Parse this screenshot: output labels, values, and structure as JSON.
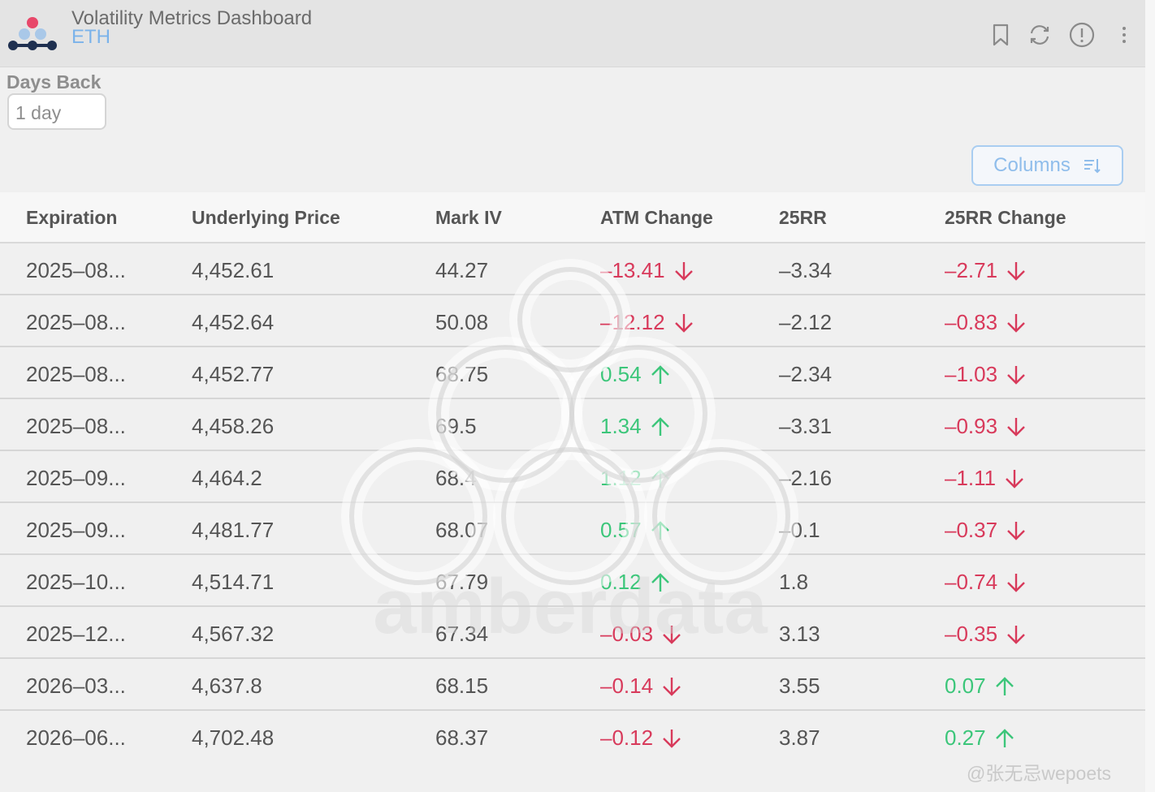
{
  "header": {
    "title": "Volatility Metrics Dashboard",
    "subtitle": "ETH",
    "icons": [
      "bookmark-icon",
      "refresh-icon",
      "info-icon",
      "more-icon"
    ]
  },
  "filter": {
    "label": "Days Back",
    "value": "1 day"
  },
  "columns_button": {
    "label": "Columns",
    "icon": "sort-list-icon"
  },
  "colors": {
    "negative": "#d83a5b",
    "positive": "#3cc67a",
    "accent": "#8fbdeb"
  },
  "table": {
    "headers": [
      "Expiration",
      "Underlying Price",
      "Mark IV",
      "ATM Change",
      "25RR",
      "25RR Change"
    ],
    "rows": [
      {
        "expiration": "2025–08...",
        "price": "4,452.61",
        "mark_iv": "44.27",
        "atm_change": "–13.41",
        "atm_dir": "down",
        "rr25": "–3.34",
        "rr25_change": "–2.71",
        "rr25_dir": "down"
      },
      {
        "expiration": "2025–08...",
        "price": "4,452.64",
        "mark_iv": "50.08",
        "atm_change": "–12.12",
        "atm_dir": "down",
        "rr25": "–2.12",
        "rr25_change": "–0.83",
        "rr25_dir": "down"
      },
      {
        "expiration": "2025–08...",
        "price": "4,452.77",
        "mark_iv": "68.75",
        "atm_change": "0.54",
        "atm_dir": "up",
        "rr25": "–2.34",
        "rr25_change": "–1.03",
        "rr25_dir": "down"
      },
      {
        "expiration": "2025–08...",
        "price": "4,458.26",
        "mark_iv": "69.5",
        "atm_change": "1.34",
        "atm_dir": "up",
        "rr25": "–3.31",
        "rr25_change": "–0.93",
        "rr25_dir": "down"
      },
      {
        "expiration": "2025–09...",
        "price": "4,464.2",
        "mark_iv": "68.4",
        "atm_change": "1.12",
        "atm_dir": "up",
        "rr25": "–2.16",
        "rr25_change": "–1.11",
        "rr25_dir": "down"
      },
      {
        "expiration": "2025–09...",
        "price": "4,481.77",
        "mark_iv": "68.07",
        "atm_change": "0.57",
        "atm_dir": "up",
        "rr25": "–0.1",
        "rr25_change": "–0.37",
        "rr25_dir": "down"
      },
      {
        "expiration": "2025–10...",
        "price": "4,514.71",
        "mark_iv": "67.79",
        "atm_change": "0.12",
        "atm_dir": "up",
        "rr25": "1.8",
        "rr25_change": "–0.74",
        "rr25_dir": "down"
      },
      {
        "expiration": "2025–12...",
        "price": "4,567.32",
        "mark_iv": "67.34",
        "atm_change": "–0.03",
        "atm_dir": "down",
        "rr25": "3.13",
        "rr25_change": "–0.35",
        "rr25_dir": "down"
      },
      {
        "expiration": "2026–03...",
        "price": "4,637.8",
        "mark_iv": "68.15",
        "atm_change": "–0.14",
        "atm_dir": "down",
        "rr25": "3.55",
        "rr25_change": "0.07",
        "rr25_dir": "up"
      },
      {
        "expiration": "2026–06...",
        "price": "4,702.48",
        "mark_iv": "68.37",
        "atm_change": "–0.12",
        "atm_dir": "down",
        "rr25": "3.87",
        "rr25_change": "0.27",
        "rr25_dir": "up"
      }
    ]
  },
  "watermark": {
    "text": "amberdata"
  },
  "social_watermark": {
    "text": "@张无忌wepoets"
  }
}
